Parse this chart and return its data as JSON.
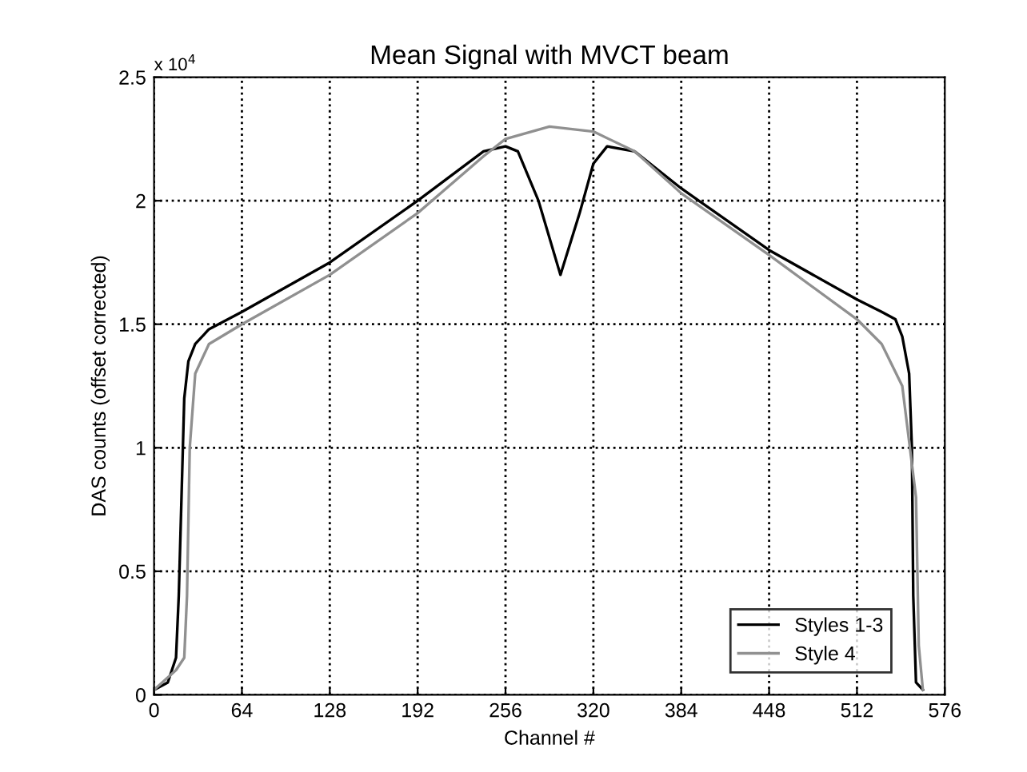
{
  "chart_data": {
    "type": "line",
    "title": "Mean Signal with MVCT beam",
    "xlabel": "Channel #",
    "ylabel": "DAS counts (offset corrected)",
    "annotations": [
      "x 10$^{4}$"
    ],
    "xlim": [
      0,
      576
    ],
    "xticks": [
      0,
      64,
      128,
      192,
      256,
      320,
      384,
      448,
      512,
      576
    ],
    "ylim": [
      0,
      2.5
    ],
    "yticks": [
      0,
      0.5,
      1,
      1.5,
      2,
      2.5
    ],
    "grid": true,
    "legend": "bottom right",
    "line_style": "solid",
    "series": [
      {
        "name": "Styles 1-3",
        "color": "#000000",
        "x": [
          0,
          10,
          16,
          18,
          20,
          22,
          25,
          30,
          40,
          64,
          128,
          192,
          240,
          256,
          265,
          280,
          296,
          310,
          320,
          330,
          350,
          384,
          448,
          512,
          530,
          540,
          545,
          550,
          552,
          553,
          555,
          560
        ],
        "values": [
          0.02,
          0.05,
          0.15,
          0.4,
          0.8,
          1.2,
          1.35,
          1.42,
          1.48,
          1.55,
          1.75,
          2.0,
          2.2,
          2.22,
          2.2,
          2.0,
          1.7,
          1.95,
          2.15,
          2.22,
          2.2,
          2.05,
          1.8,
          1.6,
          1.55,
          1.52,
          1.45,
          1.3,
          1.0,
          0.4,
          0.05,
          0.02
        ]
      },
      {
        "name": "Style 4",
        "color": "#909090",
        "x": [
          0,
          16,
          22,
          24,
          26,
          30,
          40,
          64,
          128,
          192,
          240,
          256,
          288,
          320,
          350,
          384,
          448,
          512,
          530,
          545,
          555,
          557,
          560
        ],
        "values": [
          0.02,
          0.1,
          0.15,
          0.4,
          1.0,
          1.3,
          1.42,
          1.5,
          1.7,
          1.95,
          2.18,
          2.25,
          2.3,
          2.28,
          2.2,
          2.03,
          1.78,
          1.52,
          1.42,
          1.25,
          0.8,
          0.2,
          0.02
        ]
      }
    ]
  }
}
